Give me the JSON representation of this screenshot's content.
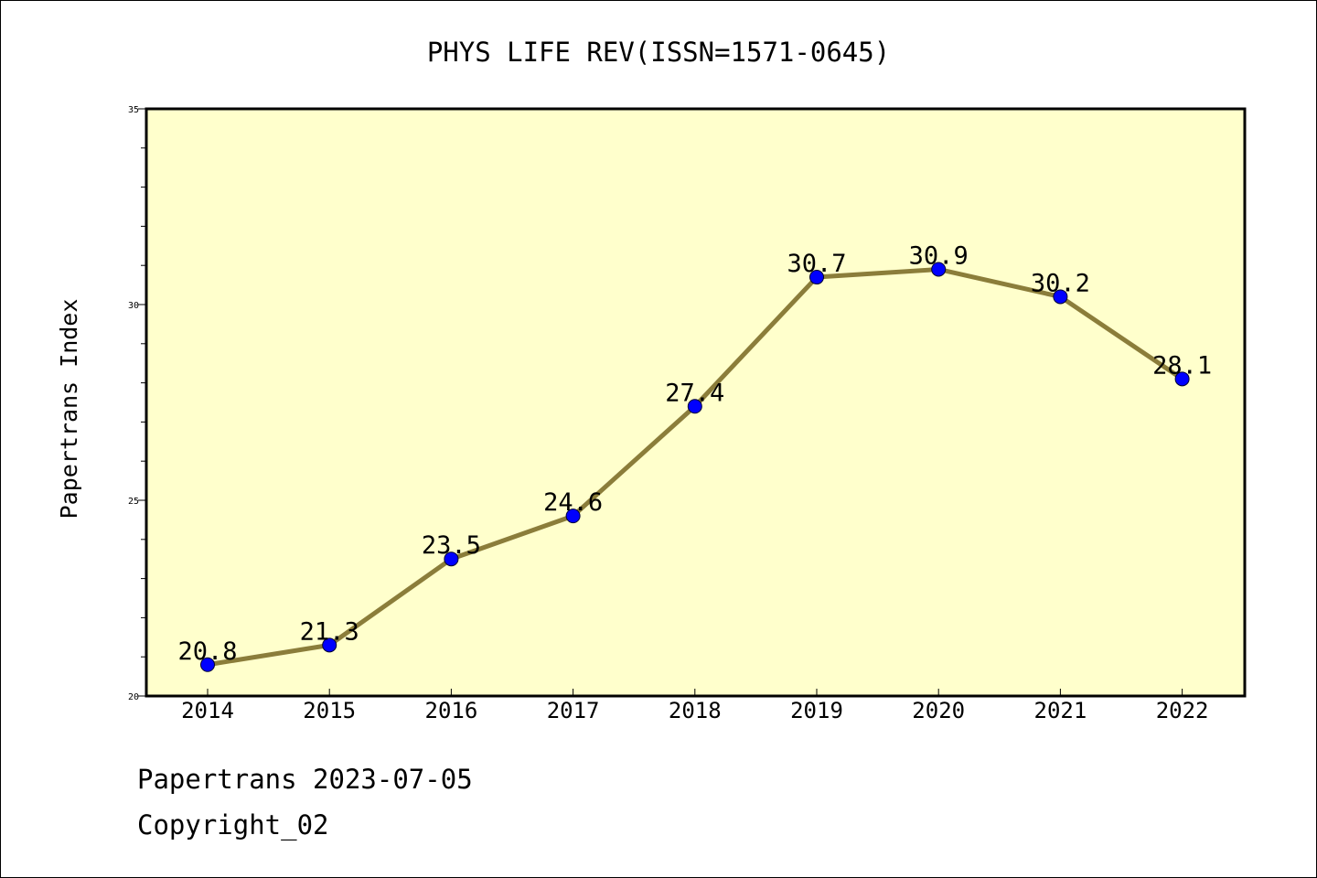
{
  "chart_data": {
    "type": "line",
    "title": "PHYS LIFE REV(ISSN=1571-0645)",
    "xlabel": "",
    "ylabel": "Papertrans Index",
    "categories": [
      "2014",
      "2015",
      "2016",
      "2017",
      "2018",
      "2019",
      "2020",
      "2021",
      "2022"
    ],
    "series": [
      {
        "values": [
          20.8,
          21.3,
          23.5,
          24.6,
          27.4,
          30.7,
          30.9,
          30.2,
          28.1
        ]
      }
    ],
    "data_labels": [
      "20.8",
      "21.3",
      "23.5",
      "24.6",
      "27.4",
      "30.7",
      "30.9",
      "30.2",
      "28.1"
    ],
    "ylim": [
      20,
      35
    ],
    "yticks": [
      20,
      25,
      30,
      35
    ],
    "ytick_labels": [
      "20",
      "25",
      "30",
      "35"
    ],
    "grid": false,
    "colors": {
      "plot_background": "#FFFFCC",
      "line": "#8B7D3A",
      "marker": "#0000FF"
    }
  },
  "footer": {
    "date_line": "Papertrans 2023-07-05",
    "copyright_line": "Copyright_02"
  }
}
